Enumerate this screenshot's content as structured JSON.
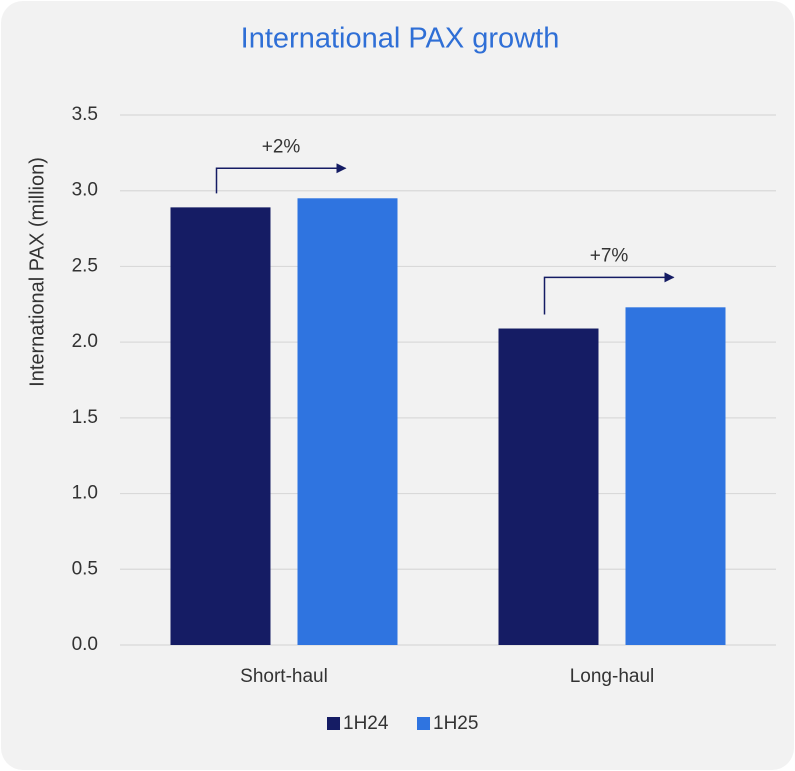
{
  "chart_data": {
    "type": "bar",
    "title": "International PAX growth",
    "y_label": "International PAX (million)",
    "categories": [
      "Short-haul",
      "Long-haul"
    ],
    "series": [
      {
        "name": "1H24",
        "color": "#151c64",
        "values": [
          2.89,
          2.09
        ]
      },
      {
        "name": "1H25",
        "color": "#2f74e0",
        "values": [
          2.95,
          2.23
        ]
      }
    ],
    "annotations": [
      "+2%",
      "+7%"
    ],
    "ylim": [
      0,
      3.5
    ],
    "yticks": [
      {
        "value": 0,
        "label": "0.0"
      },
      0.5,
      {
        "value": 1,
        "label": "1.0"
      },
      1.5,
      {
        "value": 2,
        "label": "2.0"
      },
      2.5,
      {
        "value": 3,
        "label": "3.0"
      },
      3.5
    ],
    "grid": true,
    "legend": "bottom"
  }
}
